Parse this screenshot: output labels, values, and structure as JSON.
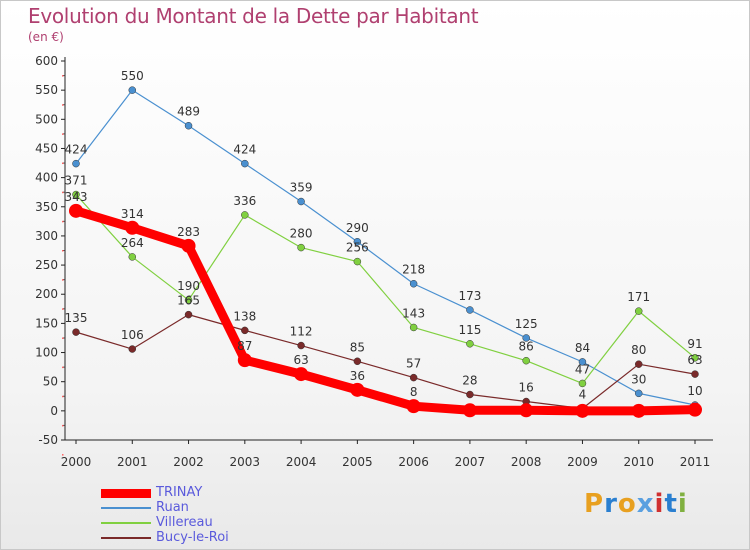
{
  "title": "Evolution du Montant de la Dette par Habitant",
  "unit": "(en €)",
  "logo": {
    "letters": [
      "P",
      "r",
      "o",
      "x",
      "i",
      "t",
      "i"
    ],
    "colors": [
      "#e8a020",
      "#2a7fd0",
      "#e8a020",
      "#5aa0e0",
      "#d03030",
      "#2a7fd0",
      "#80b040"
    ]
  },
  "chart_data": {
    "type": "line",
    "x": [
      "2000",
      "2001",
      "2002",
      "2003",
      "2004",
      "2005",
      "2006",
      "2007",
      "2008",
      "2009",
      "2010",
      "2011"
    ],
    "y_ticks": [
      "600",
      "550",
      "500",
      "450",
      "400",
      "350",
      "300",
      "250",
      "200",
      "150",
      "100",
      "50",
      "0",
      "-50"
    ],
    "ylim": [
      -50,
      600
    ],
    "grid": false,
    "legend_position": "bottom-left",
    "series": [
      {
        "name": "TRINAY",
        "values": [
          343,
          314,
          283,
          87,
          63,
          36,
          8,
          1,
          1,
          0,
          0,
          2
        ],
        "labels": [
          "343",
          "314",
          "283",
          "87",
          "63",
          "36",
          "8",
          "",
          "",
          "",
          "",
          ""
        ],
        "color": "#ff0000"
      },
      {
        "name": "Ruan",
        "values": [
          424,
          550,
          489,
          424,
          359,
          290,
          218,
          173,
          125,
          84,
          30,
          10
        ],
        "labels": [
          "424",
          "550",
          "489",
          "424",
          "359",
          "290",
          "218",
          "173",
          "125",
          "84",
          "30",
          "10"
        ],
        "color": "#4a90d0"
      },
      {
        "name": "Villereau",
        "values": [
          371,
          264,
          190,
          336,
          280,
          256,
          143,
          115,
          86,
          47,
          171,
          91
        ],
        "labels": [
          "371",
          "264",
          "190",
          "336",
          "280",
          "256",
          "143",
          "115",
          "86",
          "47",
          "171",
          "91"
        ],
        "color": "#80d040"
      },
      {
        "name": "Bucy-le-Roi",
        "values": [
          135,
          106,
          165,
          138,
          112,
          85,
          57,
          28,
          16,
          4,
          80,
          63
        ],
        "labels": [
          "135",
          "106",
          "165",
          "138",
          "112",
          "85",
          "57",
          "28",
          "16",
          "4",
          "80",
          "63"
        ],
        "color": "#7a2a2a"
      }
    ]
  }
}
